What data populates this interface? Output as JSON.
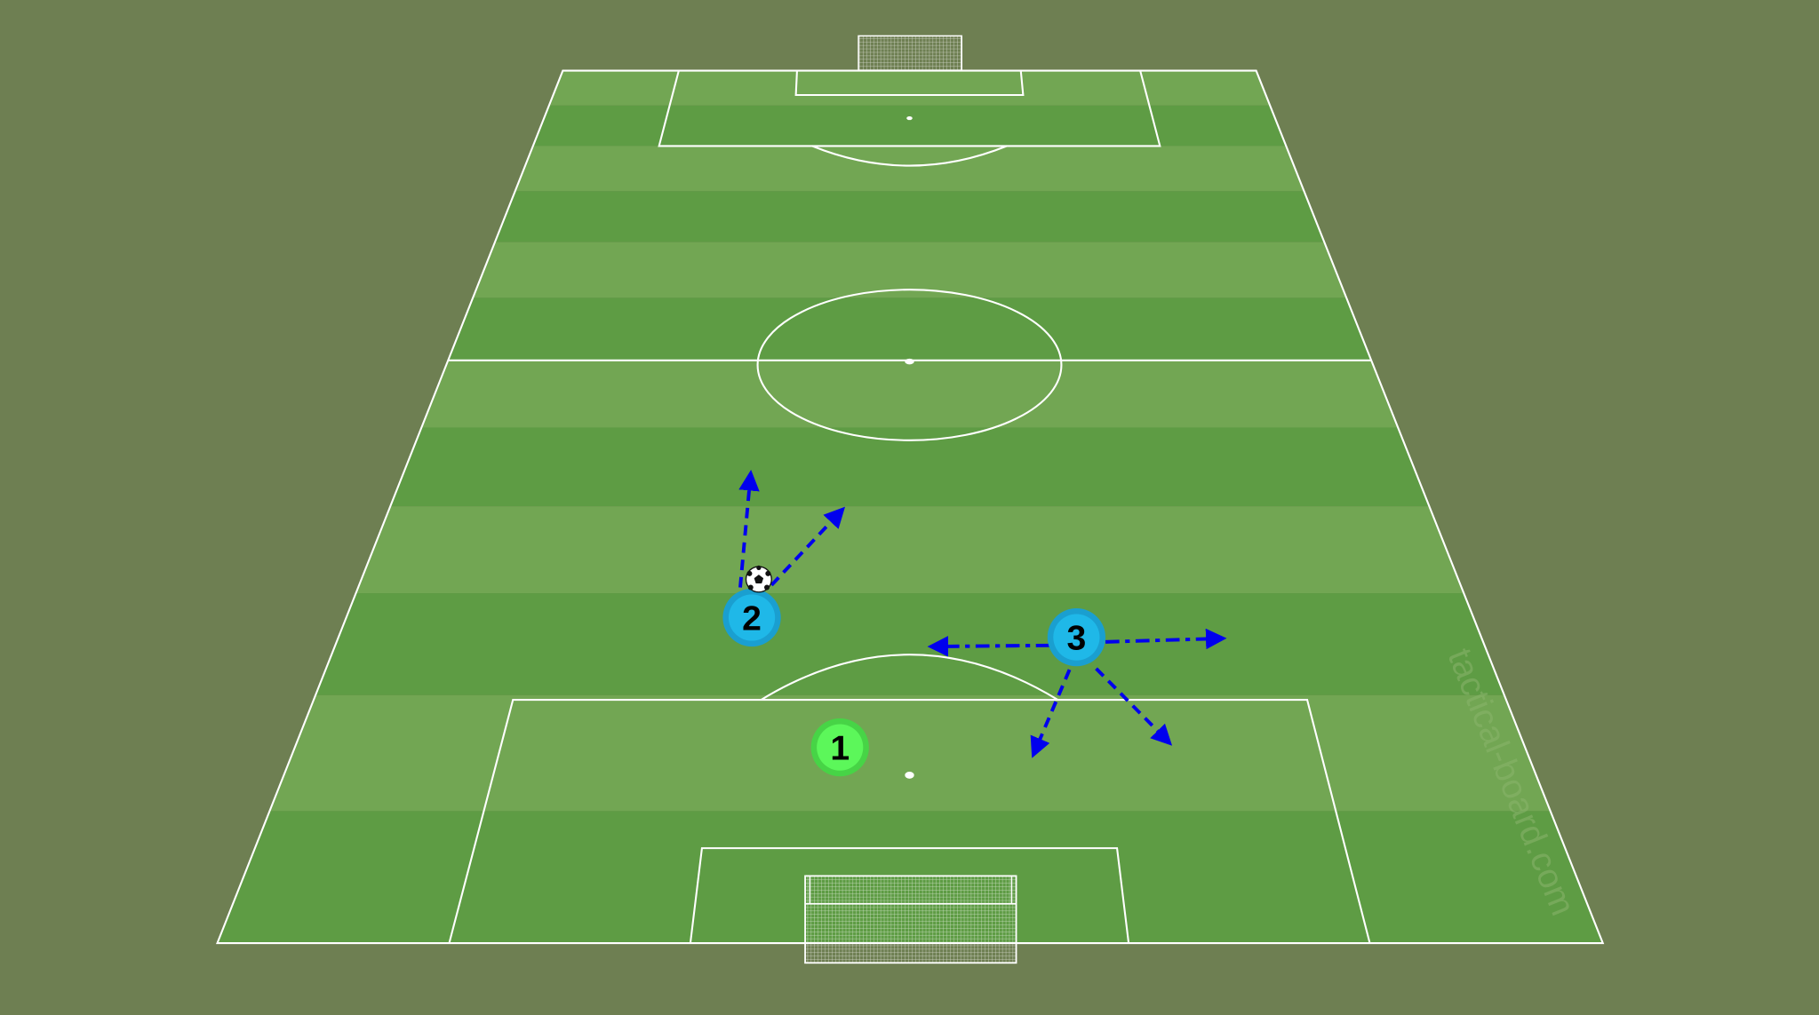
{
  "board": {
    "watermark": "tactical-board.com",
    "colors": {
      "background": "#6e7f52",
      "stripe_light": "#72a653",
      "stripe_dark": "#5e9c44",
      "line": "#ffffff",
      "arrow": "#0000ee",
      "team_blue": "#1fb8e8",
      "team_blue_ring": "#1a9fd0",
      "team_green": "#5cf75a",
      "team_green_ring": "#47d446"
    }
  },
  "players": [
    {
      "number": "1",
      "team": "green"
    },
    {
      "number": "2",
      "team": "blue",
      "has_ball": true
    },
    {
      "number": "3",
      "team": "blue"
    }
  ],
  "arrows": [
    {
      "from_player": "2",
      "style": "dashed",
      "direction": "forward"
    },
    {
      "from_player": "2",
      "style": "dashed",
      "direction": "forward-right"
    },
    {
      "from_player": "3",
      "style": "dash-dot",
      "direction": "left"
    },
    {
      "from_player": "3",
      "style": "dash-dot",
      "direction": "right"
    },
    {
      "from_player": "3",
      "style": "dashed",
      "direction": "back-left"
    },
    {
      "from_player": "3",
      "style": "dashed",
      "direction": "back-right"
    }
  ],
  "icons": {
    "ball": "soccer-ball-icon"
  }
}
